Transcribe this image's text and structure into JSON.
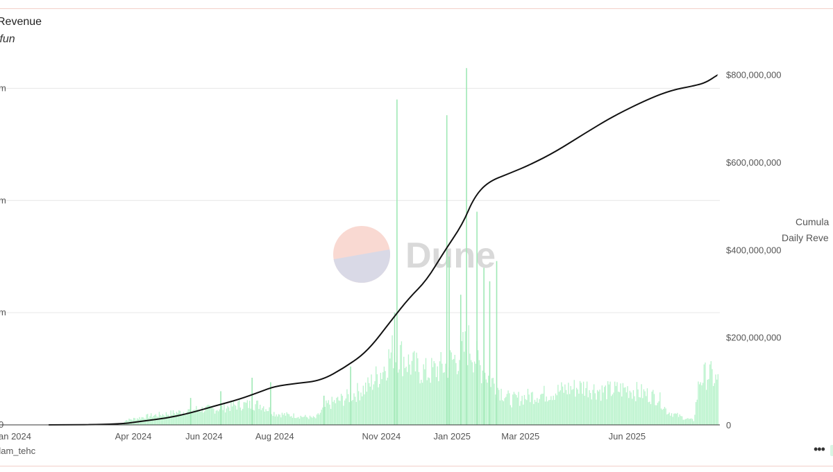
{
  "chart_data": {
    "type": "bar+line",
    "title": "Revenue",
    "subtitle": ".fun",
    "author": "dam_tehc",
    "more_icon": "ellipsis-icon",
    "watermark": {
      "text": "Dune",
      "colors": [
        "#f9d9d2",
        "#d9d9e6"
      ]
    },
    "x_tick_labels": [
      "an 2024",
      "Apr 2024",
      "Jun 2024",
      "Aug 2024",
      "Nov 2024",
      "Jan 2025",
      "Mar 2025",
      "Jun 2025"
    ],
    "x_tick_dates": [
      "2024-01-01",
      "2024-04-01",
      "2024-06-01",
      "2024-08-01",
      "2024-11-01",
      "2025-01-01",
      "2025-03-01",
      "2025-06-01"
    ],
    "x_range": [
      "2023-12-20",
      "2025-08-20"
    ],
    "left_axis": {
      "tick_labels": [
        "m",
        "m",
        "m",
        "0"
      ],
      "tick_values": [
        15,
        10,
        5,
        0
      ],
      "range": [
        0,
        16
      ]
    },
    "right_axis": {
      "tick_labels": [
        "$800,000,000",
        "$600,000,000",
        "$400,000,000",
        "$200,000,000",
        "0"
      ],
      "tick_values": [
        800000000,
        600000000,
        400000000,
        200000000,
        0
      ],
      "range": [
        0,
        820000000
      ]
    },
    "legend": [
      "Cumula",
      "Daily Reve"
    ],
    "grid": true,
    "series": [
      {
        "name": "Cumula",
        "axis": "right",
        "style": "line",
        "color": "#111111",
        "points": [
          [
            "2024-01-19",
            0
          ],
          [
            "2024-03-20",
            1000000
          ],
          [
            "2024-04-10",
            9000000
          ],
          [
            "2024-05-01",
            16000000
          ],
          [
            "2024-05-20",
            27000000
          ],
          [
            "2024-06-10",
            43000000
          ],
          [
            "2024-07-01",
            58000000
          ],
          [
            "2024-07-20",
            76000000
          ],
          [
            "2024-08-01",
            88000000
          ],
          [
            "2024-08-20",
            95000000
          ],
          [
            "2024-09-10",
            101000000
          ],
          [
            "2024-10-01",
            132000000
          ],
          [
            "2024-10-20",
            168000000
          ],
          [
            "2024-11-10",
            240000000
          ],
          [
            "2024-11-25",
            290000000
          ],
          [
            "2024-12-10",
            330000000
          ],
          [
            "2024-12-25",
            395000000
          ],
          [
            "2025-01-10",
            458000000
          ],
          [
            "2025-01-20",
            520000000
          ],
          [
            "2025-02-01",
            555000000
          ],
          [
            "2025-02-20",
            575000000
          ],
          [
            "2025-03-10",
            595000000
          ],
          [
            "2025-04-01",
            625000000
          ],
          [
            "2025-04-25",
            665000000
          ],
          [
            "2025-05-20",
            705000000
          ],
          [
            "2025-06-20",
            745000000
          ],
          [
            "2025-07-10",
            765000000
          ],
          [
            "2025-07-30",
            775000000
          ],
          [
            "2025-08-08",
            782000000
          ],
          [
            "2025-08-18",
            799000000
          ]
        ]
      },
      {
        "name": "Daily Reve",
        "axis": "left",
        "style": "bar",
        "color": "#b9f3cc",
        "spike_color": "#9fe8b5",
        "profile": [
          [
            "2024-01-19",
            0
          ],
          [
            "2024-03-20",
            0
          ],
          [
            "2024-03-25",
            0.2
          ],
          [
            "2024-04-15",
            0.4
          ],
          [
            "2024-05-01",
            0.5
          ],
          [
            "2024-05-15",
            0.6
          ],
          [
            "2024-05-25",
            0.7
          ],
          [
            "2024-06-10",
            0.7
          ],
          [
            "2024-07-01",
            0.9
          ],
          [
            "2024-07-20",
            0.9
          ],
          [
            "2024-08-01",
            0.5
          ],
          [
            "2024-08-20",
            0.4
          ],
          [
            "2024-09-05",
            0.3
          ],
          [
            "2024-09-15",
            0.9
          ],
          [
            "2024-10-01",
            1.2
          ],
          [
            "2024-10-20",
            1.7
          ],
          [
            "2024-11-01",
            2.4
          ],
          [
            "2024-11-12",
            3.4
          ],
          [
            "2024-11-25",
            2.7
          ],
          [
            "2024-12-10",
            2.3
          ],
          [
            "2024-12-25",
            2.6
          ],
          [
            "2025-01-05",
            3.0
          ],
          [
            "2025-01-15",
            3.6
          ],
          [
            "2025-01-25",
            2.6
          ],
          [
            "2025-02-10",
            1.6
          ],
          [
            "2025-02-20",
            1.1
          ],
          [
            "2025-03-10",
            1.3
          ],
          [
            "2025-03-25",
            1.4
          ],
          [
            "2025-04-10",
            1.6
          ],
          [
            "2025-04-25",
            1.7
          ],
          [
            "2025-05-10",
            1.5
          ],
          [
            "2025-06-01",
            1.6
          ],
          [
            "2025-06-15",
            1.4
          ],
          [
            "2025-06-28",
            1.2
          ],
          [
            "2025-07-05",
            0.6
          ],
          [
            "2025-07-20",
            0.3
          ],
          [
            "2025-07-28",
            0.2
          ],
          [
            "2025-08-02",
            2.0
          ],
          [
            "2025-08-10",
            2.3
          ],
          [
            "2025-08-18",
            1.9
          ]
        ],
        "spikes": [
          [
            "2024-05-20",
            1.2
          ],
          [
            "2024-06-15",
            1.5
          ],
          [
            "2024-07-12",
            2.1
          ],
          [
            "2024-07-28",
            1.9
          ],
          [
            "2024-09-12",
            1.3
          ],
          [
            "2024-10-05",
            2.6
          ],
          [
            "2024-11-14",
            14.5
          ],
          [
            "2024-11-12",
            5.0
          ],
          [
            "2024-12-27",
            13.8
          ],
          [
            "2024-12-29",
            7.5
          ],
          [
            "2025-01-08",
            5.8
          ],
          [
            "2025-01-13",
            15.9
          ],
          [
            "2025-01-22",
            9.5
          ],
          [
            "2025-01-28",
            7.0
          ],
          [
            "2025-02-08",
            7.3
          ],
          [
            "2025-02-02",
            6.4
          ]
        ]
      }
    ]
  }
}
